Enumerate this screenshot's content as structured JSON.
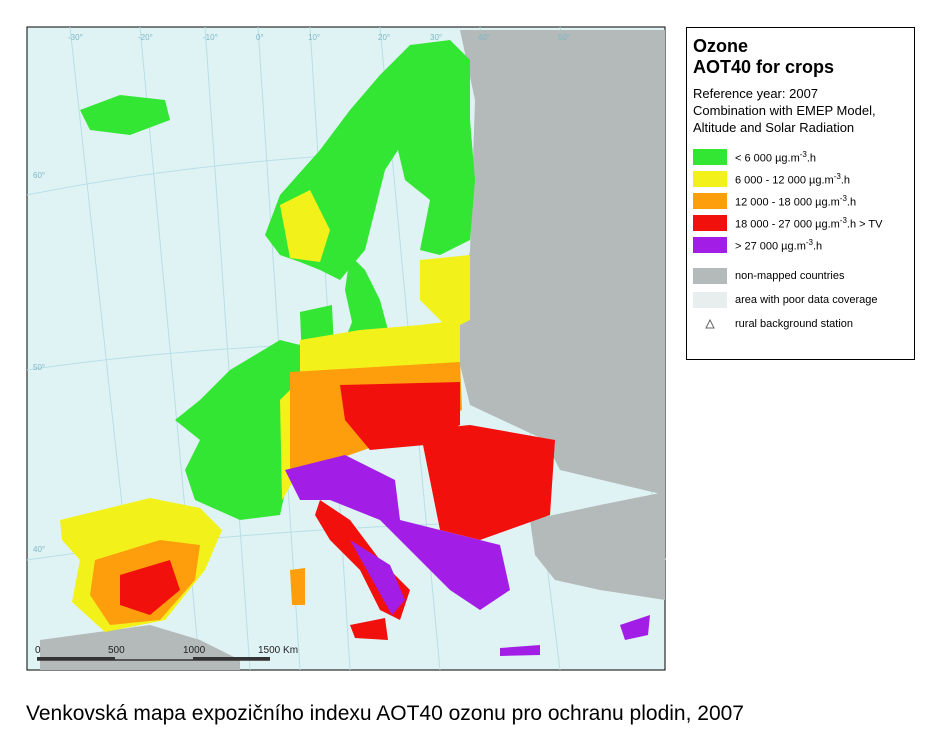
{
  "legend": {
    "title": [
      "Ozone",
      "AOT40 for crops"
    ],
    "subtitle": [
      "Reference year: 2007",
      "Combination with EMEP Model,",
      "Altitude and Solar Radiation"
    ],
    "classes": [
      {
        "pre": "<  6 000 µg.m",
        "sup": "-3",
        "post": ".h",
        "color": "#33e633"
      },
      {
        "pre": "6 000 - 12 000  µg.m",
        "sup": "-3",
        "post": ".h",
        "color": "#f2f21a"
      },
      {
        "pre": "12 000 - 18 000  µg.m",
        "sup": "-3",
        "post": ".h",
        "color": "#ff9e0d"
      },
      {
        "pre": "18 000 - 27 000  µg.m",
        "sup": "-3",
        "post": ".h  > TV",
        "color": "#f2100d"
      },
      {
        "pre": ">  27 000  µg.m",
        "sup": "-3",
        "post": ".h",
        "color": "#a21ee6"
      }
    ],
    "other": [
      {
        "label": "non-mapped countries",
        "color": "#b4b9b9"
      },
      {
        "label": "area with poor data coverage",
        "color": "#e8eded"
      },
      {
        "label": "rural background station"
      }
    ]
  },
  "scale": [
    "0",
    "500",
    "1000",
    "1500 Km"
  ],
  "graticule_top": [
    "-30°",
    "-20°",
    "-10°",
    "0°",
    "10°",
    "20°",
    "30°",
    "40°",
    "50°"
  ],
  "graticule_left": [
    "60°",
    "50°",
    "40°"
  ],
  "caption": "Venkovská mapa expozičního indexu AOT40 ozonu pro ochranu plodin, 2007"
}
